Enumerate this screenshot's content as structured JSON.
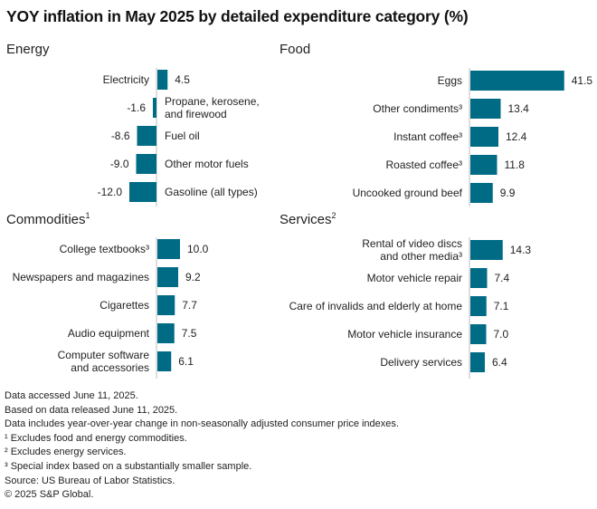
{
  "title": "YOY inflation in May 2025 by detailed expenditure category (%)",
  "chart_data": [
    {
      "type": "bar",
      "orientation": "horizontal",
      "title": "Energy",
      "title_sup": "",
      "categories": [
        "Electricity",
        "Propane, kerosene,|and firewood",
        "Fuel oil",
        "Other motor fuels",
        "Gasoline (all types)"
      ],
      "values": [
        4.5,
        -1.6,
        -8.6,
        -9.0,
        -12.0
      ],
      "labels": [
        "4.5",
        "-1.6",
        "-8.6",
        "-9.0",
        "-12.0"
      ],
      "unit": "%"
    },
    {
      "type": "bar",
      "orientation": "horizontal",
      "title": "Food",
      "title_sup": "",
      "categories": [
        "Eggs",
        "Other condiments³",
        "Instant coffee³",
        "Roasted coffee³",
        "Uncooked ground beef"
      ],
      "values": [
        41.5,
        13.4,
        12.4,
        11.8,
        9.9
      ],
      "labels": [
        "41.5",
        "13.4",
        "12.4",
        "11.8",
        "9.9"
      ],
      "unit": "%"
    },
    {
      "type": "bar",
      "orientation": "horizontal",
      "title": "Commodities",
      "title_sup": "1",
      "categories": [
        "College textbooks³",
        "Newspapers and magazines",
        "Cigarettes",
        "Audio equipment",
        "Computer software|and accessories"
      ],
      "values": [
        10.0,
        9.2,
        7.7,
        7.5,
        6.1
      ],
      "labels": [
        "10.0",
        "9.2",
        "7.7",
        "7.5",
        "6.1"
      ],
      "unit": "%"
    },
    {
      "type": "bar",
      "orientation": "horizontal",
      "title": "Services",
      "title_sup": "2",
      "categories": [
        "Rental of video discs|and other media³",
        "Motor vehicle repair",
        "Care of invalids and elderly at home",
        "Motor vehicle insurance",
        "Delivery services"
      ],
      "values": [
        14.3,
        7.4,
        7.1,
        7.0,
        6.4
      ],
      "labels": [
        "14.3",
        "7.4",
        "7.1",
        "7.0",
        "6.4"
      ],
      "unit": "%"
    }
  ],
  "colors": {
    "bar": "#006b85",
    "axis": "#c8c8c8"
  },
  "footer": [
    "Data accessed June 11, 2025.",
    "Based on data released June 11, 2025.",
    "Data includes year-over-year change in non-seasonally adjusted consumer price indexes.",
    "¹ Excludes food and energy commodities.",
    "² Excludes energy services.",
    "³ Special index based on a substantially smaller sample.",
    "Source: US Bureau of Labor Statistics.",
    "© 2025 S&P Global."
  ]
}
